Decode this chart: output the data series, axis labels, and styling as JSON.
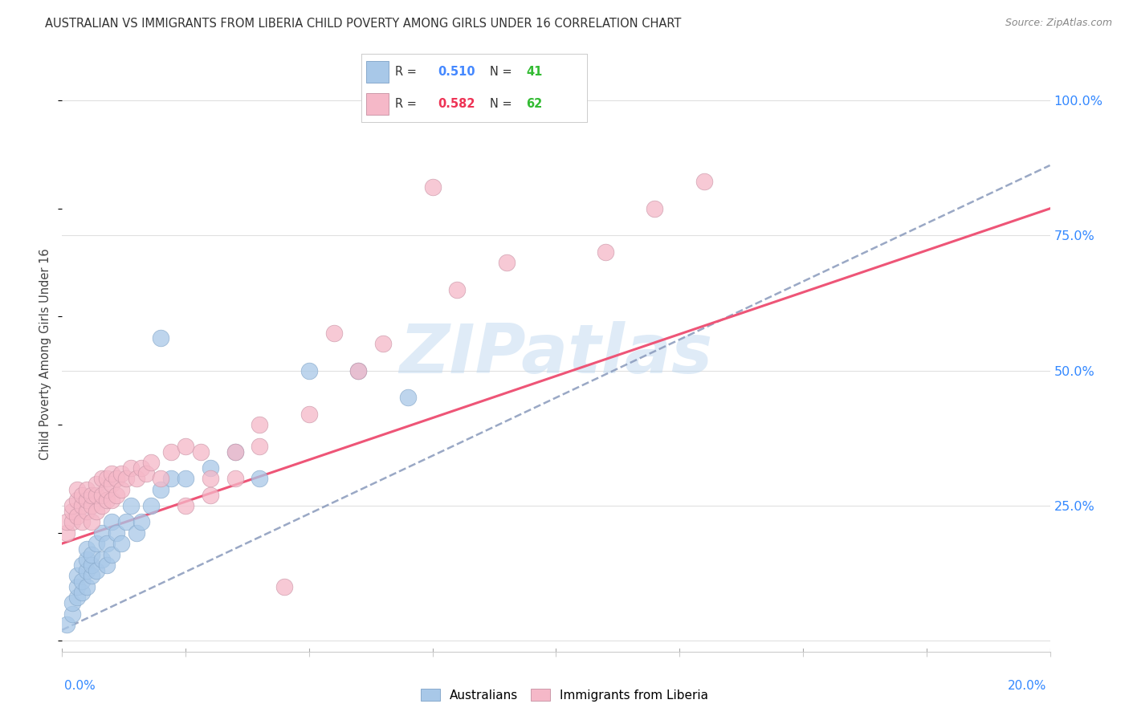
{
  "title": "AUSTRALIAN VS IMMIGRANTS FROM LIBERIA CHILD POVERTY AMONG GIRLS UNDER 16 CORRELATION CHART",
  "source": "Source: ZipAtlas.com",
  "ylabel": "Child Poverty Among Girls Under 16",
  "xmin": 0.0,
  "xmax": 0.2,
  "ymin": -0.02,
  "ymax": 1.08,
  "yticks": [
    0.0,
    0.25,
    0.5,
    0.75,
    1.0
  ],
  "ytick_labels": [
    "",
    "25.0%",
    "50.0%",
    "75.0%",
    "100.0%"
  ],
  "watermark": "ZIPatlas",
  "color_aus": "#a8c8e8",
  "color_lib": "#f5b8c8",
  "color_aus_line": "#8899bb",
  "color_lib_line": "#ee5577",
  "color_r_aus": "#4488ff",
  "color_n_aus": "#33bb33",
  "color_r_lib": "#ee3355",
  "color_n_lib": "#33bb33",
  "grid_color": "#e0e0e0",
  "background_color": "#ffffff",
  "aus_line_x0": 0.0,
  "aus_line_y0": 0.02,
  "aus_line_x1": 0.2,
  "aus_line_y1": 0.88,
  "lib_line_x0": 0.0,
  "lib_line_y0": 0.18,
  "lib_line_x1": 0.2,
  "lib_line_y1": 0.8,
  "aus_x": [
    0.001,
    0.002,
    0.002,
    0.003,
    0.003,
    0.003,
    0.004,
    0.004,
    0.004,
    0.005,
    0.005,
    0.005,
    0.005,
    0.006,
    0.006,
    0.006,
    0.007,
    0.007,
    0.008,
    0.008,
    0.009,
    0.009,
    0.01,
    0.01,
    0.011,
    0.012,
    0.013,
    0.014,
    0.015,
    0.016,
    0.018,
    0.02,
    0.022,
    0.025,
    0.03,
    0.035,
    0.04,
    0.05,
    0.06,
    0.07,
    0.02
  ],
  "aus_y": [
    0.03,
    0.05,
    0.07,
    0.08,
    0.1,
    0.12,
    0.09,
    0.11,
    0.14,
    0.1,
    0.13,
    0.15,
    0.17,
    0.12,
    0.14,
    0.16,
    0.13,
    0.18,
    0.15,
    0.2,
    0.14,
    0.18,
    0.16,
    0.22,
    0.2,
    0.18,
    0.22,
    0.25,
    0.2,
    0.22,
    0.25,
    0.28,
    0.3,
    0.3,
    0.32,
    0.35,
    0.3,
    0.5,
    0.5,
    0.45,
    0.56
  ],
  "lib_x": [
    0.001,
    0.001,
    0.002,
    0.002,
    0.002,
    0.003,
    0.003,
    0.003,
    0.004,
    0.004,
    0.004,
    0.005,
    0.005,
    0.005,
    0.006,
    0.006,
    0.006,
    0.007,
    0.007,
    0.007,
    0.008,
    0.008,
    0.008,
    0.009,
    0.009,
    0.009,
    0.01,
    0.01,
    0.01,
    0.011,
    0.011,
    0.012,
    0.012,
    0.013,
    0.014,
    0.015,
    0.016,
    0.017,
    0.018,
    0.02,
    0.022,
    0.025,
    0.028,
    0.03,
    0.035,
    0.04,
    0.05,
    0.055,
    0.06,
    0.065,
    0.075,
    0.08,
    0.09,
    0.1,
    0.11,
    0.12,
    0.13,
    0.045,
    0.03,
    0.04,
    0.025,
    0.035
  ],
  "lib_y": [
    0.2,
    0.22,
    0.22,
    0.24,
    0.25,
    0.23,
    0.26,
    0.28,
    0.22,
    0.25,
    0.27,
    0.24,
    0.26,
    0.28,
    0.22,
    0.25,
    0.27,
    0.24,
    0.27,
    0.29,
    0.25,
    0.27,
    0.3,
    0.26,
    0.28,
    0.3,
    0.26,
    0.29,
    0.31,
    0.27,
    0.3,
    0.28,
    0.31,
    0.3,
    0.32,
    0.3,
    0.32,
    0.31,
    0.33,
    0.3,
    0.35,
    0.36,
    0.35,
    0.3,
    0.35,
    0.4,
    0.42,
    0.57,
    0.5,
    0.55,
    0.84,
    0.65,
    0.7,
    1.0,
    0.72,
    0.8,
    0.85,
    0.1,
    0.27,
    0.36,
    0.25,
    0.3
  ]
}
